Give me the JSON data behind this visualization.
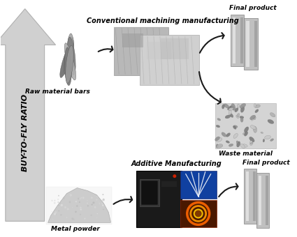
{
  "background_color": "#ffffff",
  "arrow_label": "BUY-TO-FLY RATIO",
  "arrow_color": "#d0d0d0",
  "arrow_edge_color": "#b0b0b0",
  "top_row_label_input": "Raw material bars",
  "top_row_label_process": "Conventional machining manufacturing",
  "top_row_label_output": "Final product",
  "top_row_label_waste": "Waste material",
  "bottom_row_label_input": "Metal powder",
  "bottom_row_label_process": "Additive Manufacturing",
  "bottom_row_label_output": "Final product",
  "font_size_labels": 6.5,
  "font_size_process": 7.0,
  "font_style": "italic",
  "font_weight": "bold",
  "arrow_head_color": "#1a1a1a",
  "top_bars_colors": [
    "#707070",
    "#909090",
    "#a8a8a8",
    "#787878",
    "#b0b0b0",
    "#888888",
    "#686868"
  ],
  "cnc_box1_color": "#b8b8b8",
  "cnc_box2_color": "#d0d0d0",
  "waste_box_color": "#a0a0a0",
  "final_panel_color": "#b8b8b8",
  "final_panel_shine": "#e0e0e0",
  "powder_color": "#c0c0c0",
  "am_machine_color": "#1a1a1a",
  "am_blue_color": "#1040a0",
  "am_orange_color": "#4a1800"
}
